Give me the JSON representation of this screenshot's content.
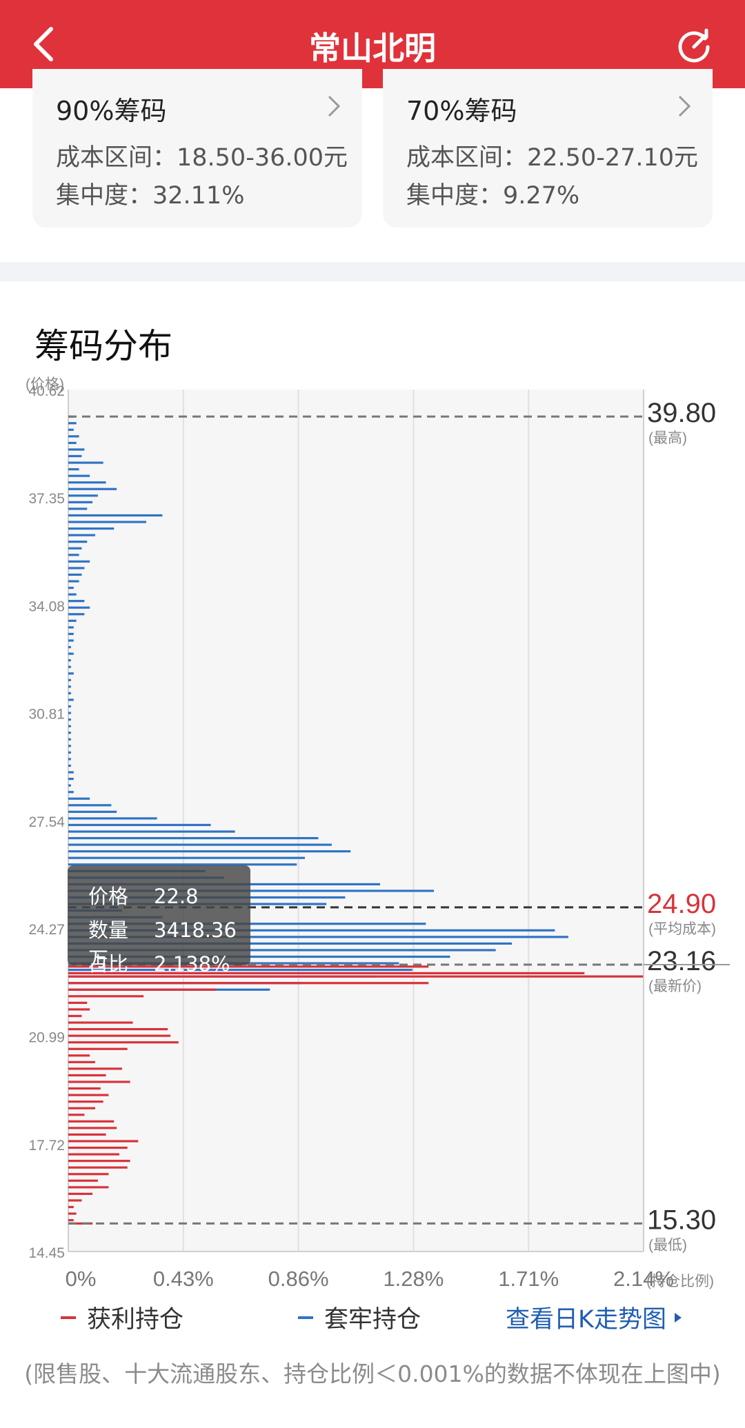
{
  "header": {
    "title": "常山北明",
    "bg": "#e0323a"
  },
  "cards": [
    {
      "name": "90%筹码",
      "range": "成本区间：18.50-36.00元",
      "concentration": "集中度：32.11%"
    },
    {
      "name": "70%筹码",
      "range": "成本区间：22.50-27.10元",
      "concentration": "集中度：9.27%"
    }
  ],
  "section": {
    "title": "筹码分布"
  },
  "tooltip": {
    "price_label": "价格",
    "price": "22.8",
    "qty_label": "数量",
    "qty": "3418.36万",
    "ratio_label": "占比",
    "ratio": "2.138%"
  },
  "legend": {
    "profit": "获利持仓",
    "trapped": "套牢持仓",
    "kline_link": "查看日K走势图"
  },
  "footnote": "(限售股、十大流通股东、持仓比例＜0.001%的数据不体现在上图中)",
  "colors": {
    "profit": "#d9323a",
    "trapped": "#2f74c4",
    "accent": "#e0323a",
    "link": "#1f5eb0"
  },
  "chart_data": {
    "type": "bar",
    "orientation": "horizontal",
    "title": "筹码分布",
    "y_unit_label": "(价格)",
    "x_unit_label": "(持仓比例)",
    "ylim": [
      14.45,
      40.62
    ],
    "xlim": [
      0,
      2.14
    ],
    "y_ticks": [
      "40.62",
      "37.35",
      "34.08",
      "30.81",
      "27.54",
      "24.27",
      "20.99",
      "17.72",
      "14.45"
    ],
    "x_ticks": [
      "0%",
      "0.43%",
      "0.86%",
      "1.28%",
      "1.71%",
      "2.14%"
    ],
    "reference_lines": [
      {
        "value": 39.8,
        "label": "39.80",
        "note": "(最高)",
        "color": "#333333"
      },
      {
        "value": 24.9,
        "label": "24.90",
        "note": "(平均成本)",
        "color": "#d9323a"
      },
      {
        "value": 23.16,
        "label": "23.16",
        "note": "(最新价)",
        "color": "#333333"
      },
      {
        "value": 15.3,
        "label": "15.30",
        "note": "(最低)",
        "color": "#333333"
      }
    ],
    "series": [
      {
        "name": "套牢持仓",
        "color": "#2f74c4",
        "points": [
          [
            39.8,
            0.02
          ],
          [
            39.6,
            0.03
          ],
          [
            39.4,
            0.02
          ],
          [
            39.2,
            0.04
          ],
          [
            39.0,
            0.03
          ],
          [
            38.8,
            0.06
          ],
          [
            38.6,
            0.05
          ],
          [
            38.4,
            0.13
          ],
          [
            38.2,
            0.04
          ],
          [
            38.0,
            0.08
          ],
          [
            37.8,
            0.14
          ],
          [
            37.6,
            0.18
          ],
          [
            37.4,
            0.11
          ],
          [
            37.2,
            0.09
          ],
          [
            37.0,
            0.07
          ],
          [
            36.8,
            0.35
          ],
          [
            36.6,
            0.29
          ],
          [
            36.4,
            0.17
          ],
          [
            36.2,
            0.1
          ],
          [
            36.0,
            0.07
          ],
          [
            35.8,
            0.05
          ],
          [
            35.6,
            0.04
          ],
          [
            35.4,
            0.08
          ],
          [
            35.2,
            0.06
          ],
          [
            35.0,
            0.05
          ],
          [
            34.8,
            0.04
          ],
          [
            34.6,
            0.02
          ],
          [
            34.4,
            0.03
          ],
          [
            34.2,
            0.06
          ],
          [
            34.0,
            0.08
          ],
          [
            33.8,
            0.06
          ],
          [
            33.6,
            0.03
          ],
          [
            33.4,
            0.02
          ],
          [
            33.2,
            0.02
          ],
          [
            33.0,
            0.02
          ],
          [
            32.8,
            0.01
          ],
          [
            32.6,
            0.02
          ],
          [
            32.4,
            0.01
          ],
          [
            32.2,
            0.01
          ],
          [
            32.0,
            0.02
          ],
          [
            31.8,
            0.01
          ],
          [
            31.6,
            0.01
          ],
          [
            31.4,
            0.01
          ],
          [
            31.2,
            0.02
          ],
          [
            31.0,
            0.01
          ],
          [
            30.8,
            0.01
          ],
          [
            30.6,
            0.01
          ],
          [
            30.4,
            0.01
          ],
          [
            30.2,
            0.01
          ],
          [
            30.0,
            0.01
          ],
          [
            29.8,
            0.01
          ],
          [
            29.6,
            0.01
          ],
          [
            29.4,
            0.01
          ],
          [
            29.2,
            0.01
          ],
          [
            29.0,
            0.02
          ],
          [
            28.8,
            0.02
          ],
          [
            28.6,
            0.01
          ],
          [
            28.4,
            0.02
          ],
          [
            28.2,
            0.08
          ],
          [
            28.0,
            0.16
          ],
          [
            27.8,
            0.18
          ],
          [
            27.6,
            0.33
          ],
          [
            27.4,
            0.53
          ],
          [
            27.2,
            0.62
          ],
          [
            27.0,
            0.93
          ],
          [
            26.8,
            0.98
          ],
          [
            26.6,
            1.05
          ],
          [
            26.4,
            0.88
          ],
          [
            26.2,
            0.85
          ],
          [
            26.0,
            0.51
          ],
          [
            25.8,
            0.58
          ],
          [
            25.6,
            1.16
          ],
          [
            25.4,
            1.36
          ],
          [
            25.2,
            1.03
          ],
          [
            25.0,
            0.96
          ],
          [
            24.8,
            0.2
          ],
          [
            24.6,
            0.35
          ],
          [
            24.4,
            1.33
          ],
          [
            24.2,
            1.81
          ],
          [
            24.0,
            1.86
          ],
          [
            23.8,
            1.65
          ],
          [
            23.6,
            1.59
          ],
          [
            23.4,
            1.42
          ],
          [
            23.2,
            1.23
          ],
          [
            23.0,
            1.28
          ],
          [
            22.8,
            1.15
          ],
          [
            22.6,
            0.87
          ],
          [
            22.4,
            0.75
          ]
        ]
      },
      {
        "name": "获利持仓",
        "color": "#d9323a",
        "points": [
          [
            23.1,
            1.34
          ],
          [
            22.9,
            1.92
          ],
          [
            22.8,
            2.138
          ],
          [
            22.6,
            1.34
          ],
          [
            22.4,
            0.55
          ],
          [
            22.2,
            0.28
          ],
          [
            22.0,
            0.07
          ],
          [
            21.8,
            0.08
          ],
          [
            21.6,
            0.05
          ],
          [
            21.4,
            0.24
          ],
          [
            21.2,
            0.37
          ],
          [
            21.0,
            0.38
          ],
          [
            20.8,
            0.41
          ],
          [
            20.6,
            0.22
          ],
          [
            20.4,
            0.08
          ],
          [
            20.2,
            0.1
          ],
          [
            20.0,
            0.2
          ],
          [
            19.8,
            0.14
          ],
          [
            19.6,
            0.23
          ],
          [
            19.4,
            0.12
          ],
          [
            19.2,
            0.15
          ],
          [
            19.0,
            0.13
          ],
          [
            18.8,
            0.1
          ],
          [
            18.6,
            0.06
          ],
          [
            18.4,
            0.17
          ],
          [
            18.2,
            0.18
          ],
          [
            18.0,
            0.14
          ],
          [
            17.8,
            0.26
          ],
          [
            17.6,
            0.22
          ],
          [
            17.4,
            0.19
          ],
          [
            17.2,
            0.23
          ],
          [
            17.0,
            0.22
          ],
          [
            16.8,
            0.15
          ],
          [
            16.6,
            0.11
          ],
          [
            16.4,
            0.15
          ],
          [
            16.2,
            0.09
          ],
          [
            16.0,
            0.05
          ],
          [
            15.8,
            0.02
          ],
          [
            15.6,
            0.03
          ],
          [
            15.4,
            0.02
          ],
          [
            15.3,
            0.09
          ]
        ]
      }
    ],
    "grid": true,
    "legend": "bottom"
  }
}
